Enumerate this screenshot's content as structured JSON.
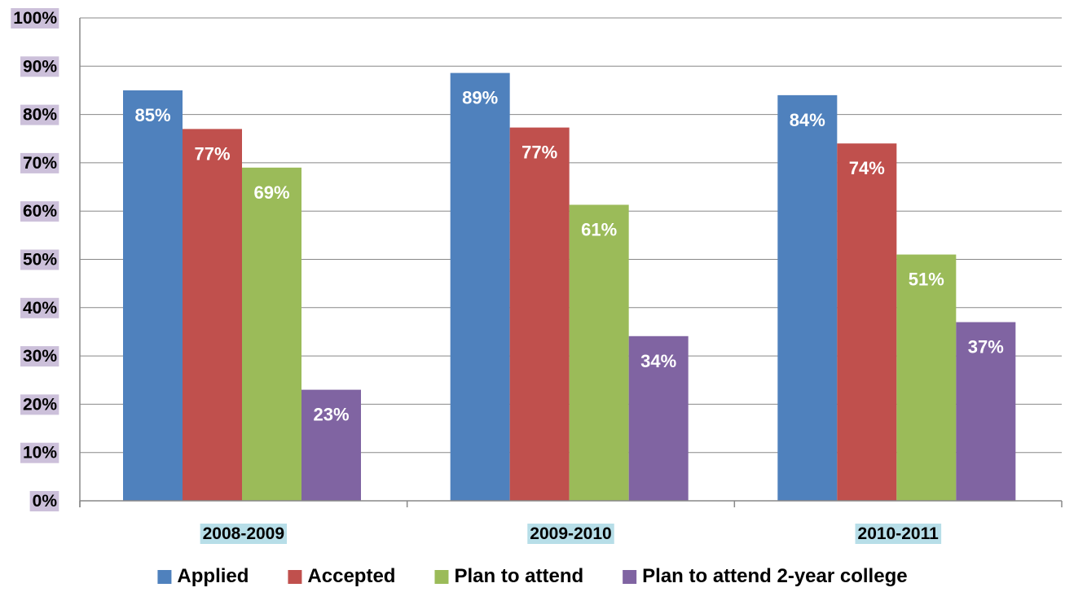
{
  "chart_data": {
    "type": "bar",
    "categories": [
      "2008-2009",
      "2009-2010",
      "2010-2011"
    ],
    "series": [
      {
        "name": "Applied",
        "values": [
          85,
          88.6,
          84
        ],
        "labels": [
          "85%",
          "89%",
          "84%"
        ],
        "color": "#4F81BD"
      },
      {
        "name": "Accepted",
        "values": [
          77,
          77.3,
          74
        ],
        "labels": [
          "77%",
          "77%",
          "74%"
        ],
        "color": "#C0504D"
      },
      {
        "name": "Plan to attend",
        "values": [
          69,
          61.3,
          51
        ],
        "labels": [
          "69%",
          "61%",
          "51%"
        ],
        "color": "#9BBB59"
      },
      {
        "name": "Plan to attend 2-year college",
        "values": [
          23,
          34.1,
          37
        ],
        "labels": [
          "23%",
          "34%",
          "37%"
        ],
        "color": "#8064A2"
      }
    ],
    "y_ticks": [
      "0%",
      "10%",
      "20%",
      "30%",
      "40%",
      "50%",
      "60%",
      "70%",
      "80%",
      "90%",
      "100%"
    ],
    "ylim": [
      0,
      100
    ],
    "grid": true,
    "legend_position": "bottom",
    "title": "",
    "xlabel": "",
    "ylabel": "",
    "tick_label_bg": "#CCC0DA",
    "category_label_bg": "#B7DEE8",
    "gridline_color": "#888888"
  }
}
